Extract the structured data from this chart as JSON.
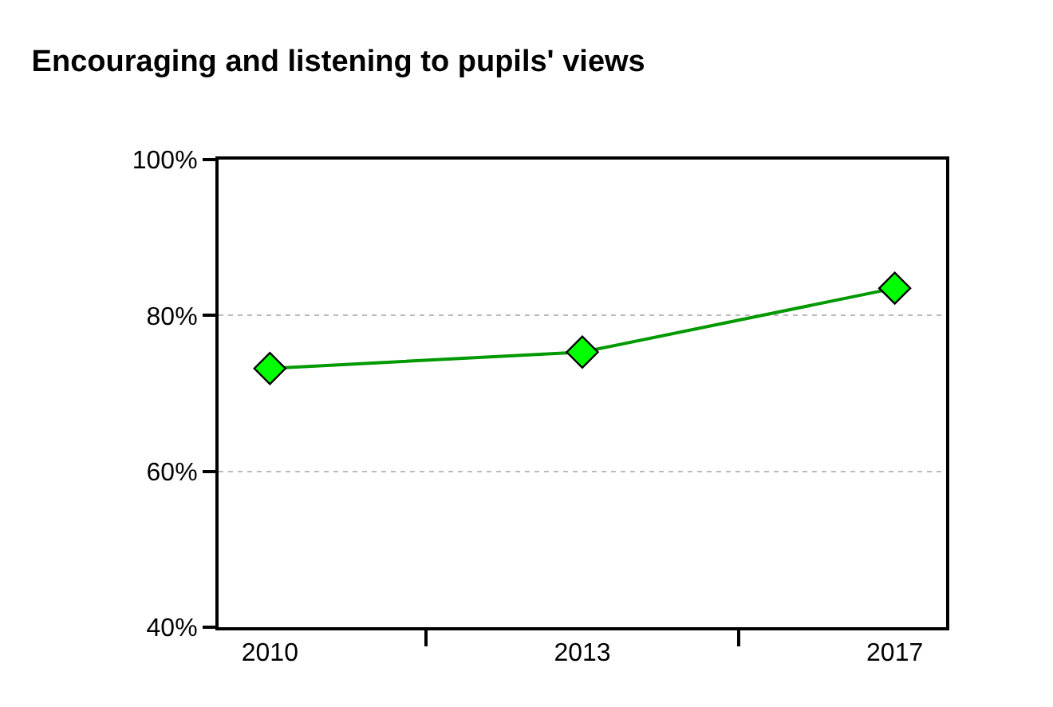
{
  "chart_data": {
    "type": "line",
    "title": "Encouraging and listening to pupils' views",
    "categories": [
      "2010",
      "2013",
      "2017"
    ],
    "series": [
      {
        "color": "#009900",
        "colors": [
          "#00ff00",
          "#00ff00",
          "#00ff00"
        ],
        "values": [
          73.2,
          75.3,
          83.5
        ]
      }
    ],
    "marker": "diamond",
    "ylim": [
      40,
      100
    ],
    "yticks": [
      {
        "value": 40,
        "label": "40%"
      },
      {
        "value": 60,
        "label": "60%"
      },
      {
        "value": 80,
        "label": "80%"
      },
      {
        "value": 100,
        "label": "100%"
      }
    ],
    "grid": "y",
    "legend": false
  }
}
